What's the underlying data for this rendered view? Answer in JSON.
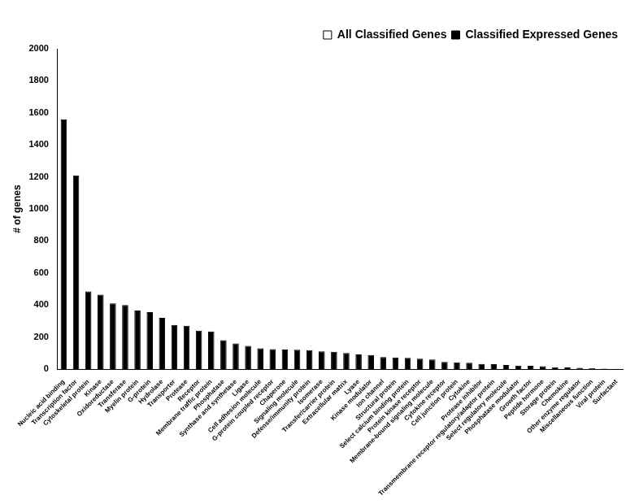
{
  "chart_data": {
    "type": "bar",
    "categories": [
      "Nucleic acid binding",
      "Transcription factor",
      "Cytoskeletal protein",
      "Kinase",
      "Oxidoreductase",
      "Transferase",
      "Myelin protein",
      "G-protein",
      "Hydrolase",
      "Transporter",
      "Protease",
      "Receptor",
      "Membrane traffic protein",
      "Phosphatase",
      "Synthase and synthetase",
      "Ligase",
      "Cell adhesion molecule",
      "G-protein coupled receptor",
      "Chaperone",
      "Signaling molecule",
      "Defense/immunity protein",
      "Isomerase",
      "Transfer/carrier protein",
      "Extracellular matrix",
      "Lyase",
      "Kinase modulator",
      "Ion channel",
      "Structural protein",
      "Select calcium binding protein",
      "Protein kinase receptor",
      "Membrane-bound signaling molecule",
      "Cytokine receptor",
      "Cell junction protein",
      "Cytokine",
      "Protease inhibitor",
      "Transmembrane receptor regulatory/adaptor protein",
      "Select regulatory molecule",
      "Phosphatase modulator",
      "Growth factor",
      "Peptide hormone",
      "Storage protein",
      "Chemokine",
      "Other enzyme regulator",
      "Miscellaneous function",
      "Viral protein",
      "Surfactant"
    ],
    "series": [
      {
        "name": "All Classified Genes",
        "color": "#ffffff",
        "values": [
          null,
          null,
          null,
          null,
          null,
          null,
          null,
          null,
          null,
          null,
          null,
          null,
          null,
          null,
          null,
          null,
          null,
          null,
          null,
          null,
          null,
          null,
          null,
          null,
          null,
          null,
          null,
          null,
          null,
          null,
          null,
          null,
          null,
          null,
          null,
          null,
          null,
          null,
          null,
          null,
          null,
          null,
          null,
          null,
          null,
          null
        ]
      },
      {
        "name": "Classified Expressed Genes",
        "color": "#000000",
        "values": [
          1560,
          1210,
          485,
          465,
          410,
          400,
          365,
          355,
          320,
          275,
          270,
          240,
          235,
          180,
          160,
          145,
          130,
          125,
          122,
          120,
          118,
          110,
          108,
          100,
          92,
          88,
          75,
          72,
          70,
          65,
          60,
          45,
          42,
          40,
          32,
          30,
          25,
          22,
          20,
          18,
          12,
          10,
          8,
          5,
          3,
          1
        ]
      }
    ],
    "y_label": "# of genes",
    "ylim": [
      0,
      2000
    ],
    "yticks": [
      0,
      200,
      400,
      600,
      800,
      1000,
      1200,
      1400,
      1600,
      1800,
      2000
    ],
    "grid": false,
    "legend": "upper right"
  }
}
